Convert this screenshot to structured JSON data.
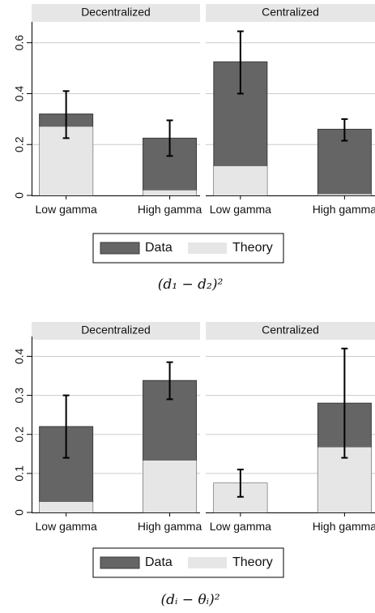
{
  "chart_data": [
    {
      "type": "bar",
      "caption": "(d₁ − d₂)²",
      "ylim": [
        0,
        0.65
      ],
      "yticks": [
        0,
        0.2,
        0.4,
        0.6
      ],
      "ytick_labels": [
        "0",
        "0.2",
        "0.4",
        "0.6"
      ],
      "grid": true,
      "legend": {
        "placement": "bottom",
        "entries": [
          "Data",
          "Theory"
        ]
      },
      "panels": [
        {
          "name": "Decentralized",
          "categories": [
            "Low gamma",
            "High gamma"
          ],
          "series": [
            {
              "name": "Data",
              "values": [
                0.32,
                0.225
              ],
              "ci_low": [
                0.225,
                0.155
              ],
              "ci_high": [
                0.41,
                0.295
              ]
            },
            {
              "name": "Theory",
              "values": [
                0.27,
                0.02
              ]
            }
          ]
        },
        {
          "name": "Centralized",
          "categories": [
            "Low gamma",
            "High gamma"
          ],
          "series": [
            {
              "name": "Data",
              "values": [
                0.525,
                0.26
              ],
              "ci_low": [
                0.4,
                0.215
              ],
              "ci_high": [
                0.645,
                0.3
              ]
            },
            {
              "name": "Theory",
              "values": [
                0.115,
                0.005
              ]
            }
          ]
        }
      ]
    },
    {
      "type": "bar",
      "caption": "(dᵢ − θᵢ)²",
      "ylim": [
        0,
        0.43
      ],
      "yticks": [
        0,
        0.1,
        0.2,
        0.3,
        0.4
      ],
      "ytick_labels": [
        "0",
        "0.1",
        "0.2",
        "0.3",
        "0.4"
      ],
      "grid": true,
      "legend": {
        "placement": "bottom",
        "entries": [
          "Data",
          "Theory"
        ]
      },
      "panels": [
        {
          "name": "Decentralized",
          "categories": [
            "Low gamma",
            "High gamma"
          ],
          "series": [
            {
              "name": "Data",
              "values": [
                0.22,
                0.338
              ],
              "ci_low": [
                0.14,
                0.29
              ],
              "ci_high": [
                0.3,
                0.385
              ]
            },
            {
              "name": "Theory",
              "values": [
                0.027,
                0.133
              ]
            }
          ]
        },
        {
          "name": "Centralized",
          "categories": [
            "Low gamma",
            "High gamma"
          ],
          "series": [
            {
              "name": "Data",
              "values": [
                0.075,
                0.28
              ],
              "ci_low": [
                0.04,
                0.14
              ],
              "ci_high": [
                0.11,
                0.42
              ]
            },
            {
              "name": "Theory",
              "values": [
                0.075,
                0.167
              ]
            }
          ]
        }
      ]
    }
  ],
  "colors": {
    "data": "#656565",
    "theory": "#e6e6e6",
    "strip": "#e6e6e6",
    "grid": "#cccccc",
    "axis": "#000000"
  }
}
